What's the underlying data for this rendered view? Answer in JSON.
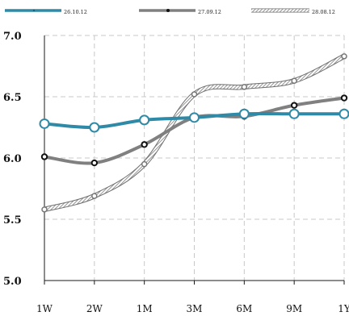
{
  "chart_data": {
    "type": "line",
    "categories": [
      "1W",
      "2W",
      "1M",
      "3M",
      "6M",
      "9M",
      "1Y"
    ],
    "yticks": [
      "7.0",
      "6.5",
      "6.0",
      "5.5",
      "5.0"
    ],
    "ylim": [
      5.0,
      7.0
    ],
    "grid": true,
    "legend_position": "top",
    "series": [
      {
        "name": "26.10.12",
        "color": "#2e8aa6",
        "marker": "open-circle",
        "style": "solid",
        "values": [
          6.28,
          6.25,
          6.31,
          6.33,
          6.36,
          6.36,
          6.36
        ]
      },
      {
        "name": "27.09.12",
        "color": "#808080",
        "marker": "dot",
        "style": "solid",
        "values": [
          6.01,
          5.96,
          6.11,
          6.33,
          6.34,
          6.43,
          6.49
        ]
      },
      {
        "name": "28.08.12",
        "color": "#999999",
        "marker": "small-open-circle",
        "style": "hatched",
        "values": [
          5.58,
          5.69,
          5.95,
          6.52,
          6.58,
          6.63,
          6.83
        ]
      }
    ]
  }
}
